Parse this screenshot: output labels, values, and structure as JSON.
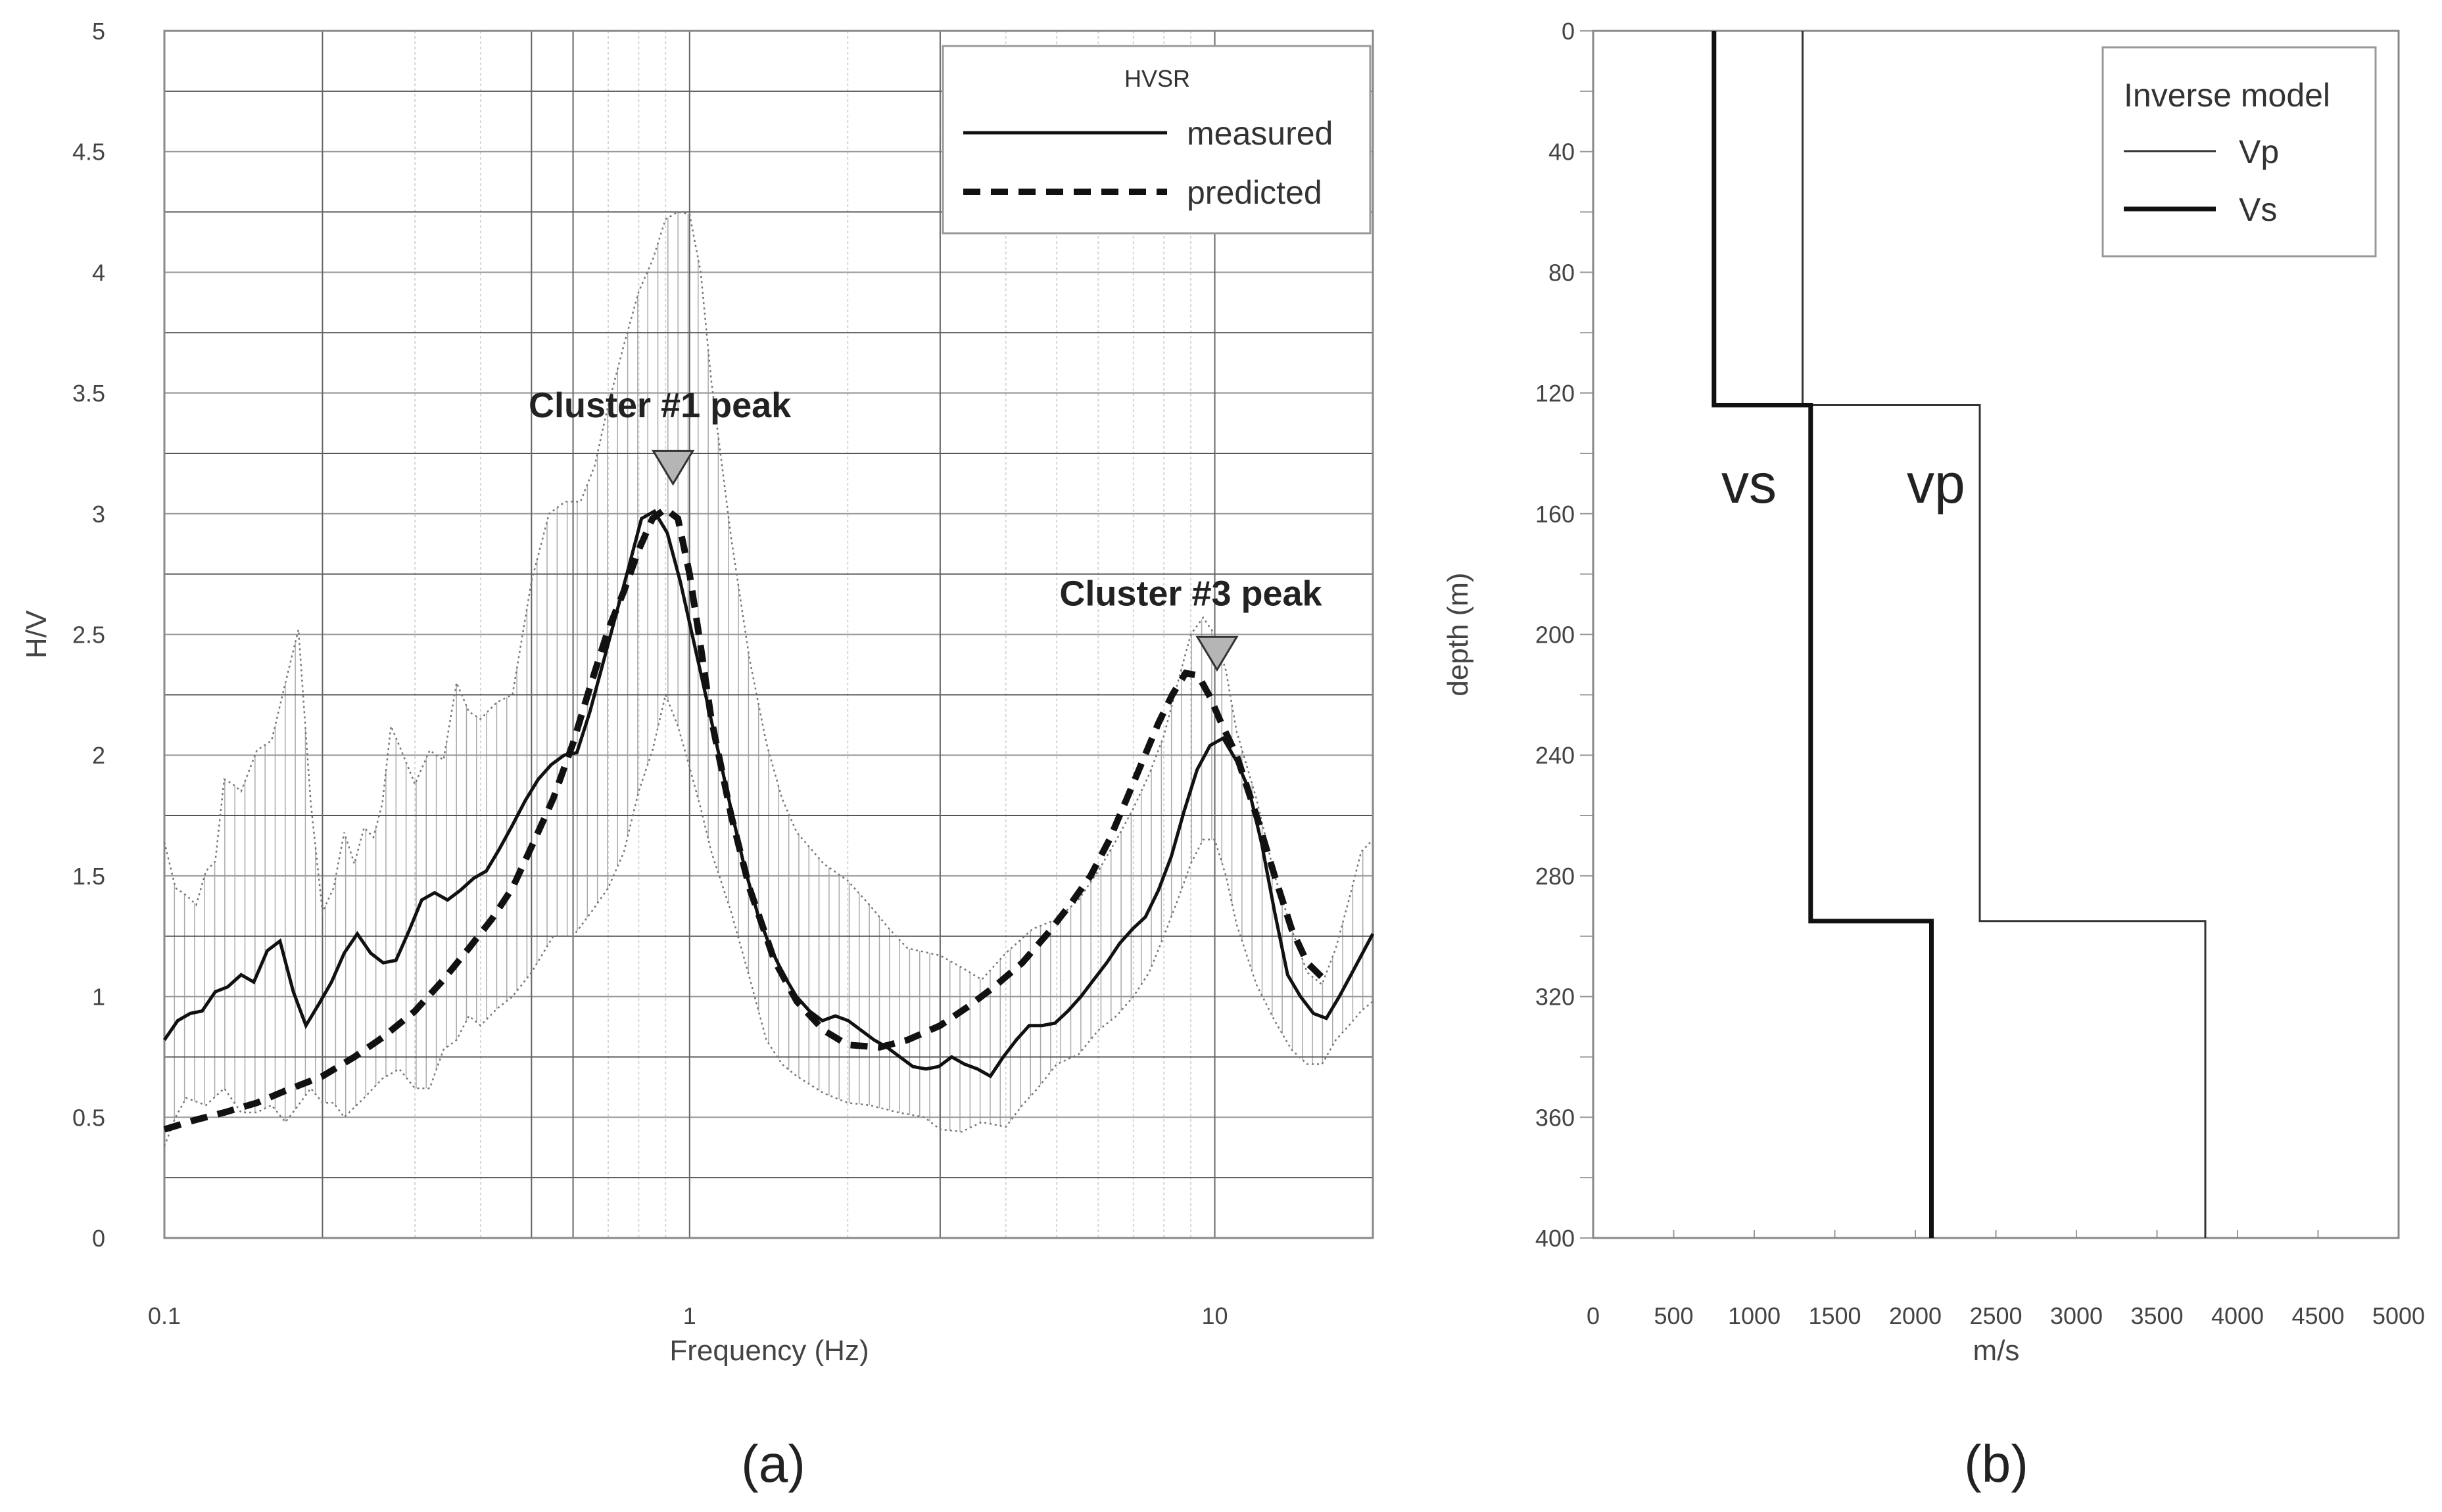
{
  "chart_data": [
    {
      "type": "line",
      "panel_label": "(a)",
      "xlabel": "Frequency (Hz)",
      "ylabel": "H/V",
      "xscale": "log",
      "xlim": [
        0.1,
        20
      ],
      "ylim": [
        0,
        5
      ],
      "xtick_labels": [
        "0.1",
        "1",
        "10"
      ],
      "ytick_labels": [
        "0",
        "0.5",
        "1",
        "1.5",
        "2",
        "2.5",
        "3",
        "3.5",
        "4",
        "4.5",
        "5"
      ],
      "legend_title": "HVSR",
      "legend_position": "top-right",
      "annotations": [
        {
          "text": "Cluster #1 peak",
          "x": 0.93,
          "y": 3.0,
          "marker_y": 3.2
        },
        {
          "text": "Cluster #3 peak",
          "x": 10.1,
          "y": 2.0,
          "marker_y": 2.43
        }
      ],
      "series": [
        {
          "name": "measured",
          "style": "solid",
          "x": [
            0.1,
            0.106,
            0.112,
            0.118,
            0.125,
            0.132,
            0.14,
            0.148,
            0.157,
            0.166,
            0.176,
            0.186,
            0.197,
            0.208,
            0.22,
            0.233,
            0.247,
            0.261,
            0.276,
            0.292,
            0.309,
            0.327,
            0.346,
            0.366,
            0.388,
            0.41,
            0.434,
            0.46,
            0.486,
            0.515,
            0.545,
            0.577,
            0.61,
            0.646,
            0.684,
            0.724,
            0.766,
            0.81,
            0.857,
            0.907,
            0.96,
            1.016,
            1.075,
            1.138,
            1.204,
            1.274,
            1.349,
            1.427,
            1.51,
            1.598,
            1.692,
            1.79,
            1.895,
            2.005,
            2.122,
            2.246,
            2.376,
            2.515,
            2.662,
            2.817,
            2.981,
            3.155,
            3.339,
            3.533,
            3.739,
            3.957,
            4.188,
            4.432,
            4.69,
            4.964,
            5.253,
            5.559,
            5.883,
            6.226,
            6.589,
            6.973,
            7.379,
            7.809,
            8.265,
            8.746,
            9.256,
            9.795,
            10.37,
            10.97,
            11.61,
            12.29,
            13.0,
            13.76,
            14.56,
            15.41,
            16.31,
            17.26,
            18.27,
            19.33,
            20.0
          ],
          "y": [
            0.82,
            0.9,
            0.93,
            0.94,
            1.02,
            1.04,
            1.09,
            1.06,
            1.19,
            1.23,
            1.02,
            0.88,
            0.97,
            1.06,
            1.18,
            1.26,
            1.18,
            1.14,
            1.15,
            1.27,
            1.4,
            1.43,
            1.4,
            1.44,
            1.49,
            1.52,
            1.61,
            1.71,
            1.81,
            1.9,
            1.96,
            2.0,
            2.01,
            2.18,
            2.38,
            2.58,
            2.78,
            2.98,
            3.01,
            2.92,
            2.72,
            2.48,
            2.24,
            2.0,
            1.76,
            1.53,
            1.34,
            1.2,
            1.09,
            1.0,
            0.94,
            0.9,
            0.92,
            0.9,
            0.86,
            0.82,
            0.79,
            0.75,
            0.71,
            0.7,
            0.71,
            0.75,
            0.72,
            0.7,
            0.67,
            0.75,
            0.82,
            0.88,
            0.88,
            0.89,
            0.94,
            1.0,
            1.07,
            1.14,
            1.22,
            1.28,
            1.33,
            1.44,
            1.58,
            1.77,
            1.94,
            2.04,
            2.07,
            1.98,
            1.86,
            1.63,
            1.35,
            1.09,
            1.0,
            0.93,
            0.91,
            1.0,
            1.1,
            1.2,
            1.26
          ]
        },
        {
          "name": "predicted",
          "style": "dashed",
          "x": [
            0.1,
            0.115,
            0.13,
            0.15,
            0.17,
            0.2,
            0.23,
            0.26,
            0.3,
            0.34,
            0.38,
            0.42,
            0.46,
            0.5,
            0.55,
            0.6,
            0.65,
            0.7,
            0.75,
            0.8,
            0.85,
            0.9,
            0.95,
            1.0,
            1.05,
            1.1,
            1.2,
            1.3,
            1.45,
            1.6,
            1.8,
            2.0,
            2.3,
            2.6,
            3.0,
            3.4,
            3.8,
            4.3,
            4.8,
            5.3,
            5.8,
            6.3,
            6.8,
            7.3,
            7.8,
            8.3,
            8.8,
            9.3,
            9.8,
            10.3,
            11.0,
            12.0,
            13.0,
            14.0,
            15.0,
            16.0
          ],
          "y": [
            0.45,
            0.49,
            0.52,
            0.56,
            0.61,
            0.67,
            0.75,
            0.83,
            0.94,
            1.07,
            1.2,
            1.32,
            1.45,
            1.62,
            1.82,
            2.05,
            2.3,
            2.52,
            2.68,
            2.85,
            2.98,
            3.02,
            2.98,
            2.75,
            2.45,
            2.15,
            1.75,
            1.45,
            1.15,
            0.98,
            0.86,
            0.8,
            0.79,
            0.82,
            0.88,
            0.96,
            1.04,
            1.14,
            1.26,
            1.38,
            1.5,
            1.65,
            1.82,
            1.98,
            2.13,
            2.25,
            2.34,
            2.33,
            2.24,
            2.13,
            2.0,
            1.75,
            1.5,
            1.28,
            1.14,
            1.08
          ]
        },
        {
          "name": "upper-bound",
          "style": "dotted",
          "x": [
            0.1,
            0.105,
            0.11,
            0.115,
            0.12,
            0.125,
            0.13,
            0.135,
            0.14,
            0.15,
            0.16,
            0.17,
            0.18,
            0.19,
            0.2,
            0.21,
            0.22,
            0.23,
            0.24,
            0.25,
            0.26,
            0.27,
            0.28,
            0.3,
            0.32,
            0.34,
            0.36,
            0.38,
            0.4,
            0.43,
            0.46,
            0.5,
            0.54,
            0.58,
            0.62,
            0.66,
            0.7,
            0.75,
            0.8,
            0.85,
            0.9,
            0.95,
            1.0,
            1.05,
            1.1,
            1.2,
            1.3,
            1.4,
            1.5,
            1.6,
            1.8,
            2.0,
            2.2,
            2.4,
            2.6,
            3.0,
            3.3,
            3.6,
            4.0,
            4.5,
            5.0,
            5.5,
            6.0,
            6.5,
            7.0,
            7.5,
            8.0,
            8.5,
            9.0,
            9.5,
            10.0,
            10.5,
            11.0,
            12.0,
            13.0,
            14.0,
            15.0,
            16.0,
            17.0,
            18.0,
            19.0,
            20.0
          ],
          "y": [
            1.64,
            1.45,
            1.42,
            1.38,
            1.52,
            1.56,
            1.9,
            1.88,
            1.85,
            2.02,
            2.06,
            2.3,
            2.52,
            1.8,
            1.35,
            1.45,
            1.68,
            1.55,
            1.7,
            1.66,
            1.8,
            2.12,
            2.04,
            1.88,
            2.02,
            1.98,
            2.3,
            2.18,
            2.15,
            2.22,
            2.25,
            2.72,
            3.0,
            3.05,
            3.05,
            3.2,
            3.45,
            3.7,
            3.92,
            4.05,
            4.22,
            4.25,
            4.24,
            4.0,
            3.55,
            2.9,
            2.4,
            2.05,
            1.82,
            1.68,
            1.55,
            1.48,
            1.38,
            1.28,
            1.2,
            1.17,
            1.12,
            1.07,
            1.18,
            1.28,
            1.32,
            1.4,
            1.52,
            1.65,
            1.78,
            1.92,
            2.08,
            2.3,
            2.5,
            2.57,
            2.5,
            2.35,
            2.1,
            1.82,
            1.5,
            1.28,
            1.1,
            1.05,
            1.2,
            1.4,
            1.6,
            1.65
          ]
        },
        {
          "name": "lower-bound",
          "style": "dotted",
          "x": [
            0.1,
            0.105,
            0.11,
            0.12,
            0.13,
            0.14,
            0.15,
            0.16,
            0.17,
            0.18,
            0.19,
            0.2,
            0.21,
            0.22,
            0.24,
            0.26,
            0.28,
            0.3,
            0.32,
            0.34,
            0.36,
            0.38,
            0.4,
            0.43,
            0.46,
            0.5,
            0.55,
            0.6,
            0.65,
            0.7,
            0.75,
            0.8,
            0.85,
            0.9,
            0.95,
            1.0,
            1.05,
            1.1,
            1.2,
            1.3,
            1.4,
            1.5,
            1.6,
            1.8,
            2.0,
            2.2,
            2.5,
            2.8,
            3.0,
            3.3,
            3.6,
            4.0,
            4.3,
            4.6,
            5.0,
            5.5,
            6.0,
            6.5,
            7.0,
            7.5,
            8.0,
            8.5,
            9.0,
            9.5,
            10.0,
            10.5,
            11.0,
            12.0,
            13.0,
            14.0,
            15.0,
            16.0,
            17.0,
            18.0,
            19.0,
            20.0
          ],
          "y": [
            0.38,
            0.5,
            0.58,
            0.55,
            0.62,
            0.52,
            0.52,
            0.55,
            0.48,
            0.55,
            0.62,
            0.56,
            0.56,
            0.5,
            0.58,
            0.66,
            0.7,
            0.62,
            0.62,
            0.78,
            0.82,
            0.92,
            0.88,
            0.95,
            1.0,
            1.1,
            1.25,
            1.25,
            1.35,
            1.45,
            1.6,
            1.85,
            2.02,
            2.25,
            2.12,
            1.95,
            1.78,
            1.6,
            1.35,
            1.08,
            0.82,
            0.72,
            0.67,
            0.6,
            0.56,
            0.55,
            0.52,
            0.5,
            0.45,
            0.44,
            0.48,
            0.46,
            0.55,
            0.62,
            0.72,
            0.76,
            0.86,
            0.92,
            1.0,
            1.1,
            1.25,
            1.4,
            1.55,
            1.65,
            1.65,
            1.5,
            1.3,
            1.05,
            0.9,
            0.78,
            0.72,
            0.72,
            0.82,
            0.88,
            0.94,
            0.98
          ]
        }
      ]
    },
    {
      "type": "line",
      "panel_label": "(b)",
      "xlabel": "m/s",
      "ylabel": "depth (m)",
      "xlim": [
        0,
        5000
      ],
      "ylim": [
        0,
        400
      ],
      "y_inverted": true,
      "xtick_labels": [
        "0",
        "500",
        "1000",
        "1500",
        "2000",
        "2500",
        "3000",
        "3500",
        "4000",
        "4500",
        "5000"
      ],
      "ytick_labels": [
        "0",
        "40",
        "80",
        "120",
        "160",
        "200",
        "240",
        "280",
        "320",
        "360",
        "400"
      ],
      "legend_title": "Inverse model",
      "legend_position": "top-right",
      "curve_labels": [
        {
          "text": "vs",
          "series": "Vs"
        },
        {
          "text": "vp",
          "series": "Vp"
        }
      ],
      "series": [
        {
          "name": "Vp",
          "style": "thin",
          "velocity": [
            1300,
            1300,
            2400,
            2400,
            3800,
            3800
          ],
          "depth": [
            0,
            124,
            124,
            295,
            295,
            400
          ]
        },
        {
          "name": "Vs",
          "style": "thick",
          "velocity": [
            750,
            750,
            1350,
            1350,
            2100,
            2100
          ],
          "depth": [
            0,
            124,
            124,
            295,
            295,
            400
          ]
        }
      ]
    }
  ]
}
